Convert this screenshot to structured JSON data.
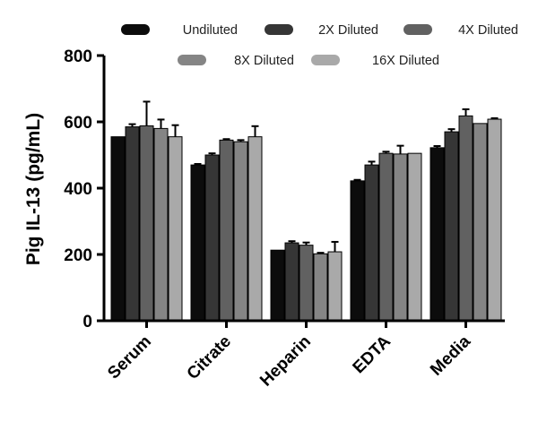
{
  "chart_data": {
    "type": "bar",
    "categories": [
      "Serum",
      "Citrate",
      "Heparin",
      "EDTA",
      "Media"
    ],
    "ylabel": "Pig IL-13 (pg/mL)",
    "xlabel": "",
    "ylim": [
      0,
      800
    ],
    "yticks": [
      0,
      200,
      400,
      600,
      800
    ],
    "grid": false,
    "legend_position": "top",
    "series": [
      {
        "name": "Undiluted",
        "color": "#0c0c0c",
        "values": [
          555,
          470,
          213,
          422,
          522
        ],
        "errors": [
          0,
          3,
          0,
          3,
          5
        ]
      },
      {
        "name": "2X Diluted",
        "color": "#363636",
        "values": [
          585,
          500,
          235,
          470,
          570
        ],
        "errors": [
          8,
          5,
          5,
          10,
          8
        ]
      },
      {
        "name": "4X Diluted",
        "color": "#616161",
        "values": [
          588,
          545,
          228,
          505,
          618
        ],
        "errors": [
          73,
          3,
          8,
          5,
          20
        ]
      },
      {
        "name": "8X Diluted",
        "color": "#858585",
        "values": [
          580,
          540,
          202,
          503,
          595
        ],
        "errors": [
          27,
          5,
          3,
          25,
          0
        ]
      },
      {
        "name": "16X Diluted",
        "color": "#a9a9a9",
        "values": [
          555,
          555,
          208,
          505,
          608
        ],
        "errors": [
          35,
          32,
          30,
          0,
          3
        ]
      }
    ]
  }
}
